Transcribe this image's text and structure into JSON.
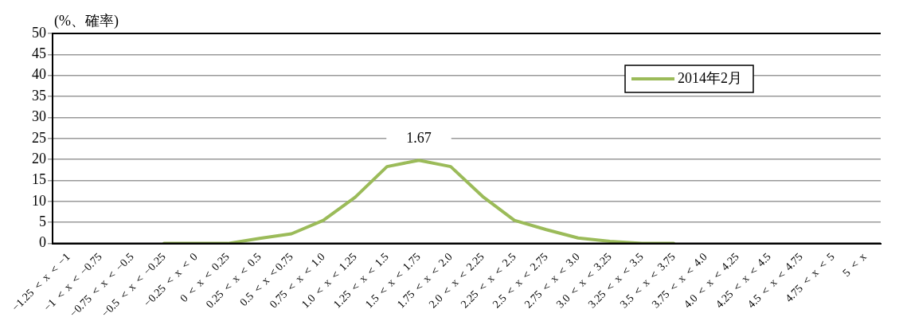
{
  "chart_data": {
    "type": "line",
    "ylabel": "(%、確率)",
    "categories": [
      "−1.25 ＜ x ＜ −1",
      "−1 ＜ x ＜ −0.75",
      "−0.75 ＜ x ＜ −0.5",
      "−0.5 ＜ x ＜ −0.25",
      "−0.25 ＜ x ＜ 0",
      "0 ＜ x ＜ 0.25",
      "0.25 ＜ x ＜ 0.5",
      "0.5 ＜ x ＜0.75",
      "0.75 ＜ x ＜ 1.0",
      "1.0 ＜ x ＜ 1.25",
      "1.25 ＜ x ＜ 1.5",
      "1.5 ＜ x ＜ 1.75",
      "1.75 ＜ x ＜ 2.0",
      "2.0 ＜ x ＜ 2.25",
      "2.25 ＜ x ＜ 2.5",
      "2.5 ＜ x ＜ 2.75",
      "2.75 ＜ x ＜ 3.0",
      "3.0 ＜ x ＜ 3.25",
      "3.25 ＜ x ＜ 3.5",
      "3.5 ＜ x ＜ 3.75",
      "3.75 ＜ x ＜ 4.0",
      "4.0 ＜ x ＜ 4.25",
      "4.25 ＜ x ＜ 4.5",
      "4.5 ＜ x ＜ 4.75",
      "4.75 ＜ x ＜ 5",
      "5 ＜ x"
    ],
    "series": [
      {
        "name": "2014年2月",
        "color": "#9bbb59",
        "values": [
          null,
          null,
          null,
          0,
          0,
          0,
          1.2,
          2.3,
          5.5,
          11,
          18.3,
          19.8,
          18.3,
          11.2,
          5.5,
          3.3,
          1.3,
          0.5,
          0,
          0,
          null,
          null,
          null,
          null,
          null,
          null
        ]
      }
    ],
    "ylim": [
      0,
      50
    ],
    "yticks": [
      0,
      5,
      10,
      15,
      20,
      25,
      30,
      35,
      40,
      45,
      50
    ],
    "grid": "y",
    "legend": "top right",
    "marker": "none",
    "line_style": "solid",
    "annotations": [
      "1.67"
    ]
  }
}
